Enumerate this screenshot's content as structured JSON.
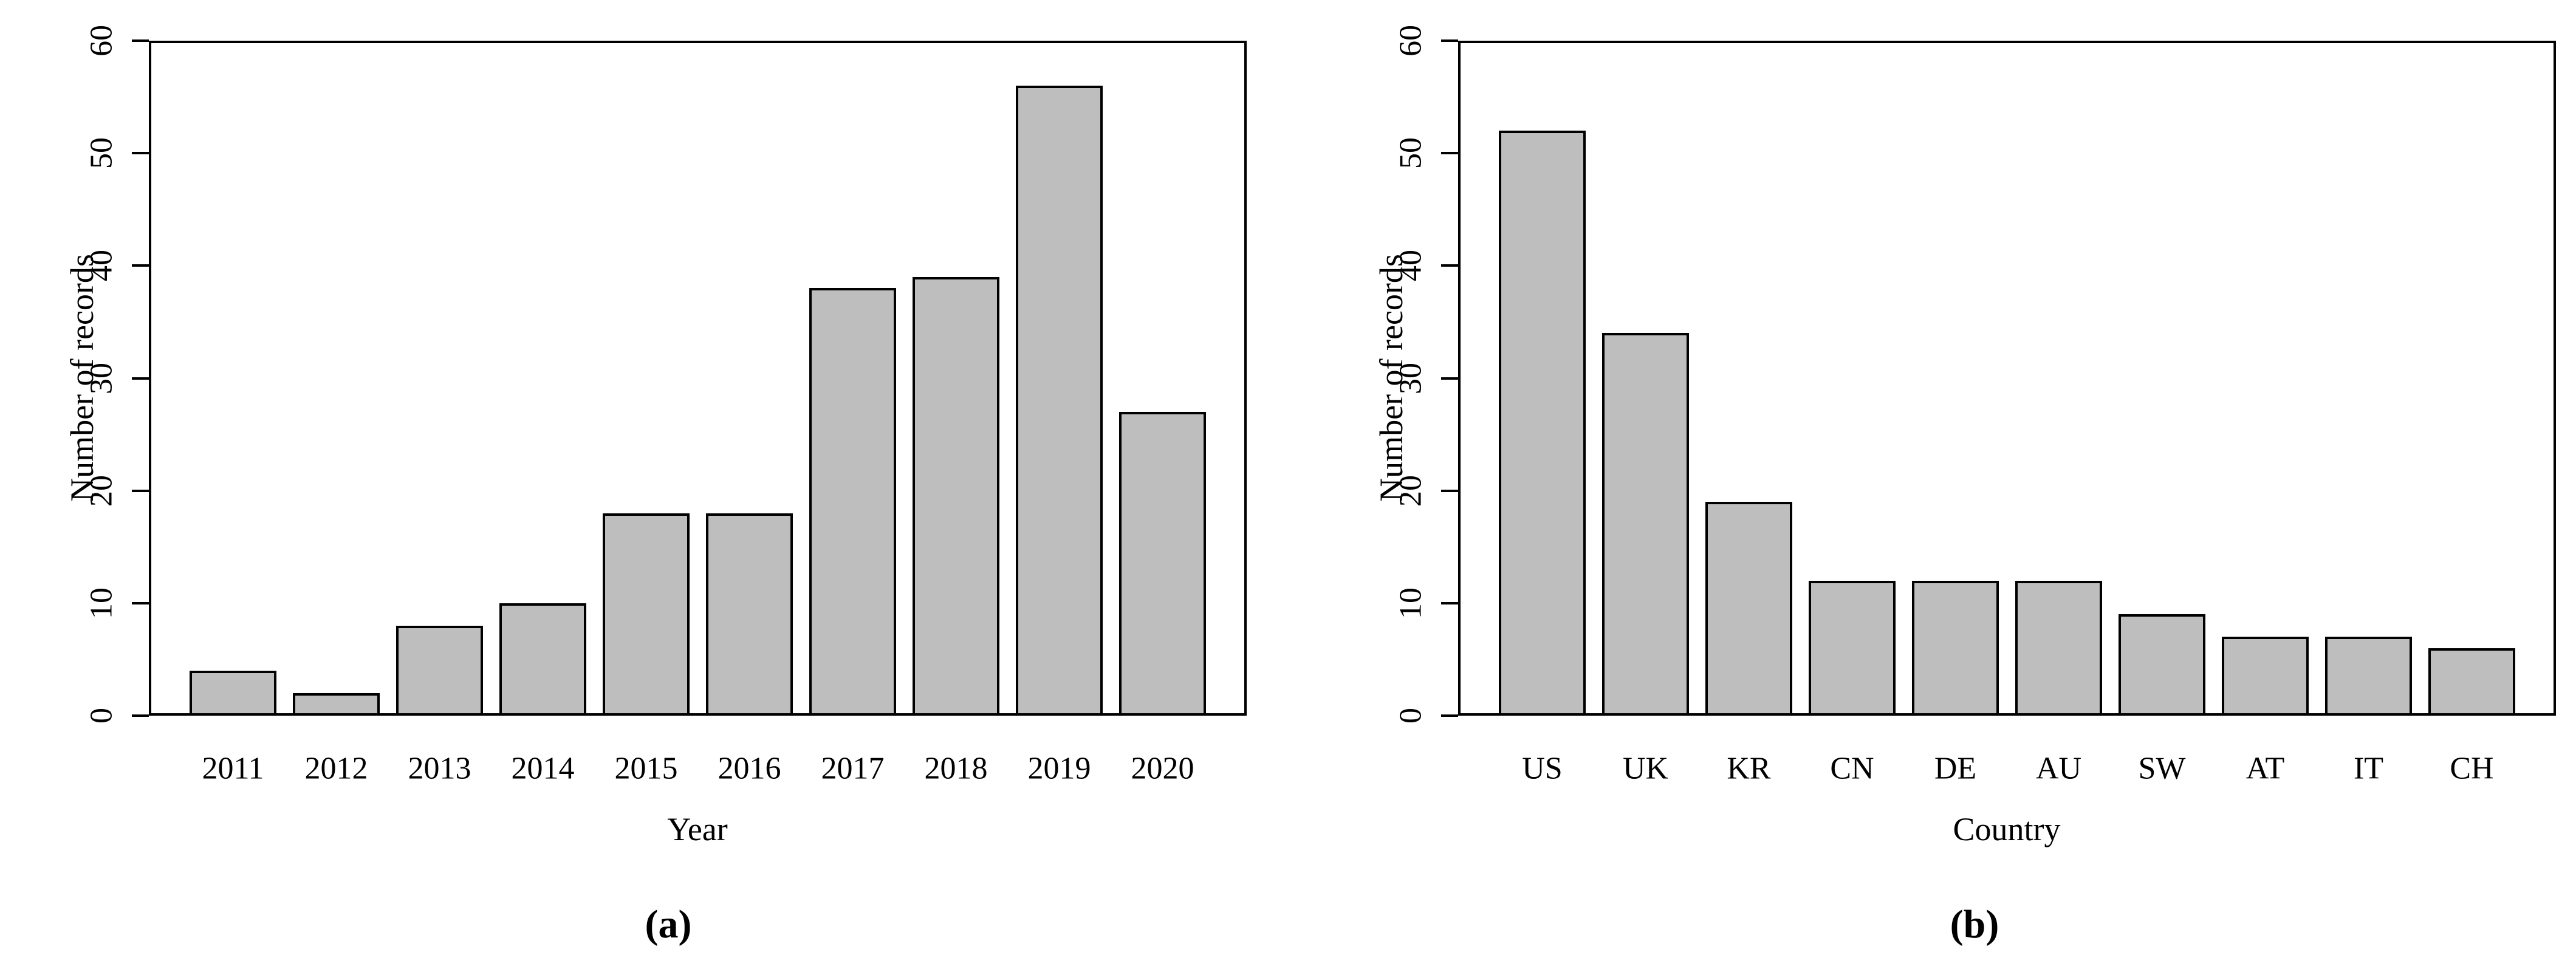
{
  "figure": {
    "caption_a": "(a)",
    "caption_b": "(b)",
    "bar_fill_color": "#bebebe",
    "bar_border_color": "#000000",
    "axis_color": "#000000",
    "background_color": "#ffffff"
  },
  "chart_data": [
    {
      "type": "bar",
      "panel": "a",
      "title": "",
      "xlabel": "Year",
      "ylabel": "Number of records",
      "categories": [
        "2011",
        "2012",
        "2013",
        "2014",
        "2015",
        "2016",
        "2017",
        "2018",
        "2019",
        "2020"
      ],
      "values": [
        4,
        2,
        8,
        10,
        18,
        18,
        38,
        39,
        56,
        27
      ],
      "ylim": [
        0,
        60
      ],
      "yticks": [
        0,
        10,
        20,
        30,
        40,
        50,
        60
      ],
      "grid": false,
      "legend": "none"
    },
    {
      "type": "bar",
      "panel": "b",
      "title": "",
      "xlabel": "Country",
      "ylabel": "Number of records",
      "categories": [
        "US",
        "UK",
        "KR",
        "CN",
        "DE",
        "AU",
        "SW",
        "AT",
        "IT",
        "CH"
      ],
      "values": [
        52,
        34,
        19,
        12,
        12,
        12,
        9,
        7,
        7,
        6
      ],
      "ylim": [
        0,
        60
      ],
      "yticks": [
        0,
        10,
        20,
        30,
        40,
        50,
        60
      ],
      "grid": false,
      "legend": "none"
    }
  ]
}
